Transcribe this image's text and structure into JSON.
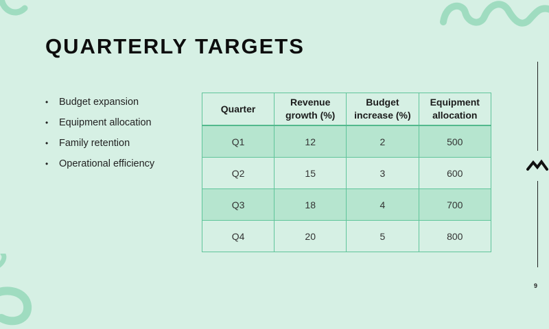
{
  "slide": {
    "title": "QUARTERLY TARGETS",
    "page_number": "9"
  },
  "bullets": [
    "Budget expansion",
    "Equipment allocation",
    "Family retention",
    "Operational efficiency"
  ],
  "table": {
    "headers": [
      [
        "Quarter"
      ],
      [
        "Revenue",
        "growth (%)"
      ],
      [
        "Budget",
        "increase (%)"
      ],
      [
        "Equipment",
        "allocation"
      ]
    ],
    "rows": [
      [
        "Q1",
        "12",
        "2",
        "500"
      ],
      [
        "Q2",
        "15",
        "3",
        "600"
      ],
      [
        "Q3",
        "18",
        "4",
        "700"
      ],
      [
        "Q4",
        "20",
        "5",
        "800"
      ]
    ]
  },
  "colors": {
    "background": "#d6f0e4",
    "table_band": "#b6e5cf",
    "table_border": "#5fc49a",
    "decoration": "#9fdcc0"
  }
}
